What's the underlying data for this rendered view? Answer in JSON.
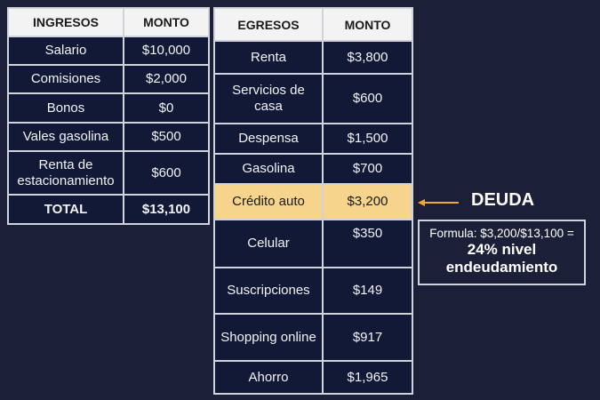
{
  "ingresos": {
    "headers": [
      "INGRESOS",
      "MONTO"
    ],
    "rows": [
      {
        "label": "Salario",
        "amount": "$10,000"
      },
      {
        "label": "Comisiones",
        "amount": "$2,000"
      },
      {
        "label": "Bonos",
        "amount": "$0"
      },
      {
        "label": "Vales gasolina",
        "amount": "$500"
      },
      {
        "label": "Renta de estacionamiento",
        "amount": "$600"
      }
    ],
    "total": {
      "label": "TOTAL",
      "amount": "$13,100"
    }
  },
  "egresos": {
    "headers": [
      "EGRESOS",
      "MONTO"
    ],
    "rows": [
      {
        "label": "Renta",
        "amount": "$3,800"
      },
      {
        "label": "Servicios de casa",
        "amount": "$600"
      },
      {
        "label": "Despensa",
        "amount": "$1,500"
      },
      {
        "label": "Gasolina",
        "amount": "$700"
      },
      {
        "label": "Crédito auto",
        "amount": "$3,200"
      },
      {
        "label": "Celular",
        "amount": "$350"
      },
      {
        "label": "Suscripciones",
        "amount": "$149"
      },
      {
        "label": "Shopping online",
        "amount": "$917"
      },
      {
        "label": "Ahorro",
        "amount": "$1,965"
      }
    ],
    "highlight_color": "#f6d48b"
  },
  "annotation": {
    "label": "DEUDA",
    "arrow_color": "#f0a830",
    "formula": "Formula: $3,200/$13,100 =",
    "result": "24% nivel endeudamiento"
  }
}
